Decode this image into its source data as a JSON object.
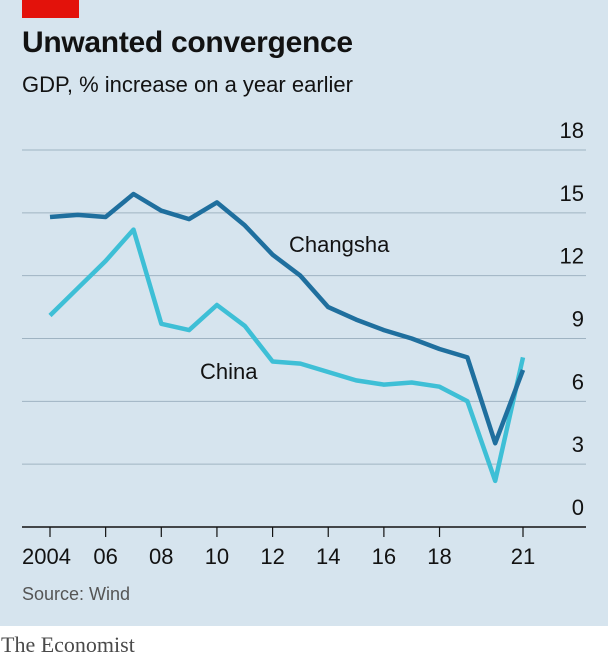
{
  "header": {
    "title": "Unwanted convergence",
    "subtitle": "GDP, % increase on a year earlier"
  },
  "footer": {
    "source": "Source: Wind",
    "brand": "The Economist"
  },
  "colors": {
    "background": "#d6e4ee",
    "accent_tag": "#e3120b",
    "changsha": "#1f6f9e",
    "china": "#3ebfd6",
    "gridline": "#9fb3c2"
  },
  "chart_data": {
    "type": "line",
    "x": [
      2004,
      2005,
      2006,
      2007,
      2008,
      2009,
      2010,
      2011,
      2012,
      2013,
      2014,
      2015,
      2016,
      2017,
      2018,
      2019,
      2020,
      2021
    ],
    "x_tick_labels": [
      "2004",
      "06",
      "08",
      "10",
      "12",
      "14",
      "16",
      "18",
      "21"
    ],
    "x_tick_values": [
      2004,
      2006,
      2008,
      2010,
      2012,
      2014,
      2016,
      2018,
      2021
    ],
    "y_tick_labels": [
      "0",
      "3",
      "6",
      "9",
      "12",
      "15",
      "18"
    ],
    "y_tick_values": [
      0,
      3,
      6,
      9,
      12,
      15,
      18
    ],
    "ylim": [
      0,
      18
    ],
    "xlim": [
      2004,
      2021
    ],
    "grid": true,
    "y_axis_side": "right",
    "series": [
      {
        "name": "Changsha",
        "values": [
          14.8,
          14.9,
          14.8,
          15.9,
          15.1,
          14.7,
          15.5,
          14.4,
          13.0,
          12.0,
          10.5,
          9.9,
          9.4,
          9.0,
          8.5,
          8.1,
          4.0,
          7.5
        ]
      },
      {
        "name": "China",
        "values": [
          10.1,
          11.4,
          12.7,
          14.2,
          9.7,
          9.4,
          10.6,
          9.6,
          7.9,
          7.8,
          7.4,
          7.0,
          6.8,
          6.9,
          6.7,
          6.0,
          2.2,
          8.1
        ]
      }
    ]
  }
}
